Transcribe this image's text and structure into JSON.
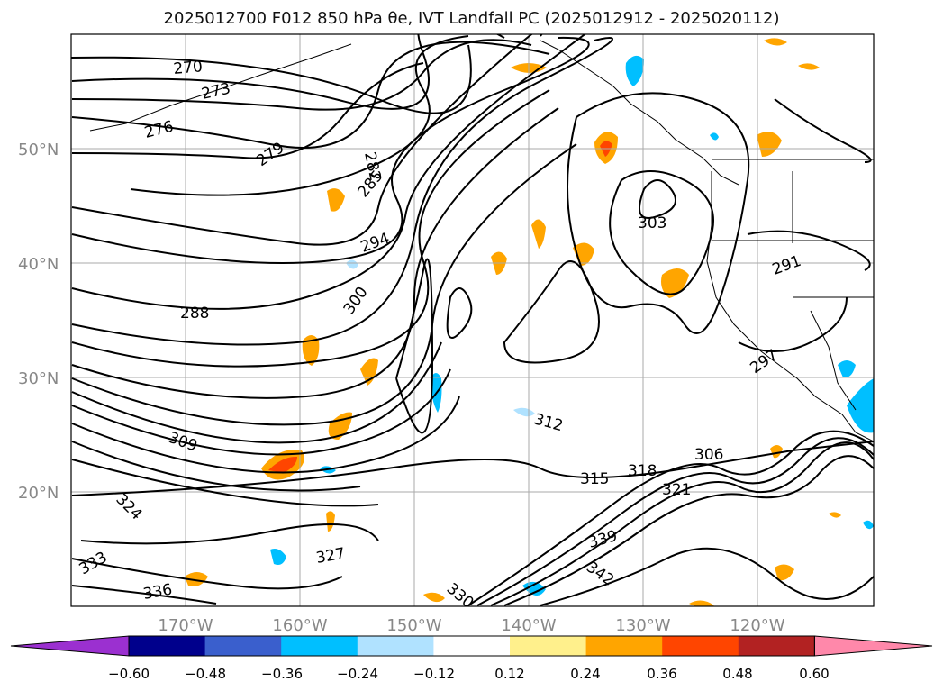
{
  "title": "2025012700 F012 850 hPa θe, IVT Landfall PC (2025012912 - 2025020112)",
  "lat_labels": [
    "50°N",
    "40°N",
    "30°N",
    "20°N"
  ],
  "lon_labels": [
    "170°W",
    "160°W",
    "150°W",
    "140°W",
    "130°W",
    "120°W"
  ],
  "contour_labels": [
    "270",
    "273",
    "276",
    "279",
    "282",
    "285",
    "288",
    "291",
    "294",
    "297",
    "300",
    "303",
    "306",
    "309",
    "312",
    "315",
    "318",
    "321",
    "324",
    "327",
    "330",
    "333",
    "336",
    "339",
    "342"
  ],
  "colorbar": {
    "ticks": [
      "−0.60",
      "−0.48",
      "−0.36",
      "−0.24",
      "−0.12",
      "0.12",
      "0.24",
      "0.36",
      "0.48",
      "0.60"
    ],
    "colors": [
      "#9b30d0",
      "#00008c",
      "#3a5fcd",
      "#00bfff",
      "#b0e2ff",
      "#ffffff",
      "#fff08c",
      "#ffa500",
      "#ff4500",
      "#b22222",
      "#ff88aa"
    ]
  },
  "colors": {
    "contour": "#000000",
    "grid": "#aaaaaa",
    "axis_label": "#888888"
  }
}
